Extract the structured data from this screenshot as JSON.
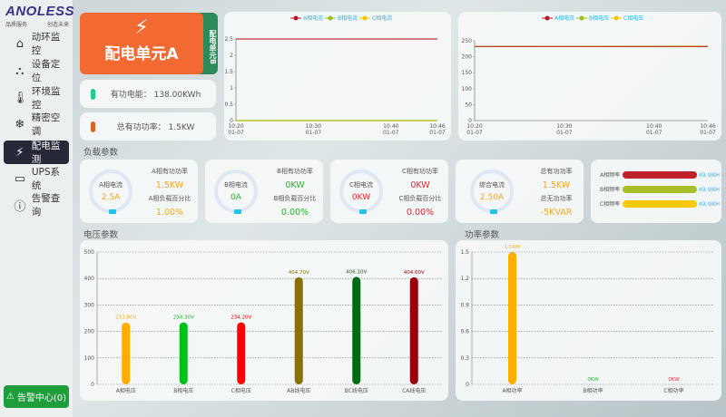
{
  "logo": {
    "brand": "ANOLESS",
    "slogan_left": "品质服务",
    "slogan_right": "创造未来"
  },
  "nav": [
    {
      "label": "动环监控",
      "icon": "home-icon",
      "glyph": "⌂"
    },
    {
      "label": "设备定位",
      "icon": "network-icon",
      "glyph": "⛬"
    },
    {
      "label": "环境监控",
      "icon": "thermometer-icon",
      "glyph": "🌡"
    },
    {
      "label": "精密空调",
      "icon": "snowflake-icon",
      "glyph": "❄"
    },
    {
      "label": "配电监测",
      "icon": "bolt-icon",
      "glyph": "⚡",
      "active": true
    },
    {
      "label": "UPS系统",
      "icon": "battery-icon",
      "glyph": "▭"
    },
    {
      "label": "告警查询",
      "icon": "alert-circle-icon",
      "glyph": "ⓘ"
    }
  ],
  "alarm_center": "告警中心(0)",
  "unit": {
    "name": "配电单元A",
    "next": "配电单元B"
  },
  "info": [
    {
      "label": "有功电能：",
      "value": "138.00KWh",
      "color": "#1ec98a"
    },
    {
      "label": "总有功功率：",
      "value": "1.5KW",
      "color": "#d9642a"
    }
  ],
  "current_chart": {
    "type": "line",
    "legend": [
      "A相电流",
      "B相电流",
      "C相电流"
    ],
    "colors": [
      "#c0141e",
      "#9cbf18",
      "#f5c400"
    ],
    "yticks": [
      "0",
      "0.5",
      "1",
      "1.5",
      "2",
      "2.5"
    ],
    "ylim": [
      0,
      2.5
    ],
    "xticks": [
      [
        "10:20",
        "01-07"
      ],
      [
        "10:30",
        "01-07"
      ],
      [
        "10:40",
        "01-07"
      ],
      [
        "10:46",
        "01-07"
      ]
    ],
    "xpos": [
      0,
      10,
      20,
      26
    ],
    "series": [
      {
        "name": "A相电流",
        "values": [
          2.5,
          2.5
        ]
      },
      {
        "name": "B相电流",
        "values": [
          0,
          0
        ]
      },
      {
        "name": "C相电流",
        "values": [
          0,
          0
        ]
      }
    ]
  },
  "voltage_line_chart": {
    "type": "line",
    "legend": [
      "A相电压",
      "B相电压",
      "C相电压"
    ],
    "colors": [
      "#c0141e",
      "#9cbf18",
      "#f5c400"
    ],
    "yticks": [
      "0",
      "50",
      "100",
      "150",
      "200",
      "250"
    ],
    "ylim": [
      0,
      250
    ],
    "xticks": [
      [
        "10:20",
        "01-07"
      ],
      [
        "10:30",
        "01-07"
      ],
      [
        "10:40",
        "01-07"
      ],
      [
        "10:46",
        "01-07"
      ]
    ],
    "xpos": [
      0,
      10,
      20,
      26
    ],
    "series": [
      {
        "name": "A相电压",
        "values": [
          232,
          232
        ]
      },
      {
        "name": "B相电压",
        "values": [
          232,
          232
        ]
      },
      {
        "name": "C相电压",
        "values": [
          232,
          233
        ]
      }
    ]
  },
  "load_title": "负载参数",
  "loads": [
    {
      "ring_label": "A相电流",
      "ring_value": "2.5A",
      "p_label": "A相有功功率",
      "p_value": "1.5KW",
      "r_label": "A相负载百分比",
      "r_value": "1.00%",
      "color": "#f5a623"
    },
    {
      "ring_label": "B相电流",
      "ring_value": "0A",
      "p_label": "B相有功功率",
      "p_value": "0KW",
      "r_label": "B相负载百分比",
      "r_value": "0.00%",
      "color": "#22b822"
    },
    {
      "ring_label": "C相电流",
      "ring_value": "0KW",
      "p_label": "C相有功功率",
      "p_value": "0KW",
      "r_label": "C相负载百分比",
      "r_value": "0.00%",
      "color": "#f0232d"
    },
    {
      "ring_label": "综合电流",
      "ring_value": "2.50A",
      "p_label": "总有功功率",
      "p_value": "1.5KW",
      "r_label": "总无功功率",
      "r_value": "-5KVAR",
      "color": "#f5a623"
    }
  ],
  "freq": [
    {
      "label": "A相频率",
      "value": "49.98H",
      "color": "#c0202a"
    },
    {
      "label": "B相频率",
      "value": "49.98H",
      "color": "#a8bf2a"
    },
    {
      "label": "C相频率",
      "value": "49.98H",
      "color": "#f7c80c"
    }
  ],
  "chart_data": [
    {
      "type": "bar",
      "title": "电压参数",
      "categories": [
        "A相电压",
        "B相电压",
        "C相电压",
        "AB线电压",
        "BC线电压",
        "CA线电压"
      ],
      "values": [
        233.8,
        234.3,
        234.2,
        404.7,
        406.1,
        404.6
      ],
      "labels": [
        "233.80V",
        "234.30V",
        "234.20V",
        "404.70V",
        "406.10V",
        "404.60V"
      ],
      "colors": [
        "#ffae00",
        "#00c018",
        "#ff0000",
        "#8a7000",
        "#006a10",
        "#9a0008"
      ],
      "yticks": [
        "0",
        "100",
        "200",
        "300",
        "400",
        "500"
      ],
      "ylim": [
        0,
        500
      ]
    },
    {
      "type": "bar",
      "title": "功率参数",
      "categories": [
        "A相功率",
        "B相功率",
        "C相功率"
      ],
      "values": [
        1.5,
        0,
        0
      ],
      "labels": [
        "1.5KW",
        "0KW",
        "0KW"
      ],
      "colors": [
        "#ffae00",
        "#22c422",
        "#ff3040"
      ],
      "yticks": [
        "0",
        "0.3",
        "0.6",
        "0.9",
        "1.2",
        "1.5"
      ],
      "ylim": [
        0,
        1.5
      ]
    }
  ]
}
